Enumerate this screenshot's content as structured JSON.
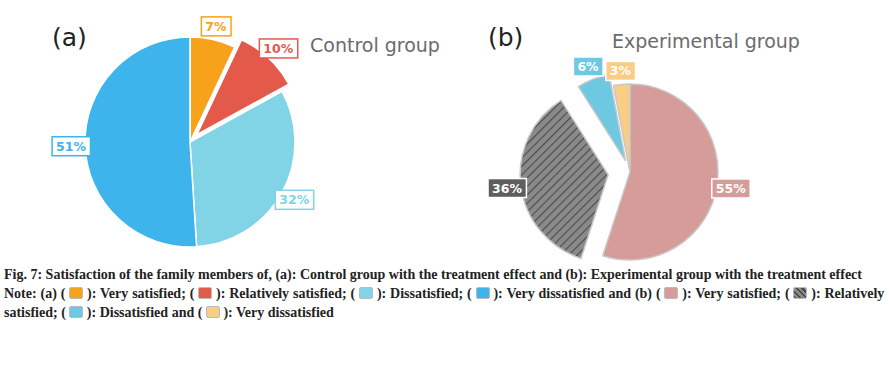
{
  "chart_data": [
    {
      "type": "pie",
      "panel": "(a)",
      "title": "Control group",
      "categories": [
        "Very satisfied",
        "Relatively satisfied",
        "Dissatisfied",
        "Very dissatisfied"
      ],
      "values": [
        7,
        10,
        32,
        51
      ],
      "value_labels": [
        "7%",
        "10%",
        "32%",
        "51%"
      ],
      "colors": [
        "#f7a21b",
        "#e35a4b",
        "#80d4e6",
        "#3db5ec"
      ],
      "data_labels": true
    },
    {
      "type": "pie",
      "panel": "(b)",
      "title": "Experimental group",
      "categories": [
        "Very satisfied",
        "Relatively satisfied",
        "Dissatisfied",
        "Very dissatisfied"
      ],
      "values": [
        55,
        36,
        6,
        3
      ],
      "value_labels": [
        "55%",
        "36%",
        "6%",
        "3%"
      ],
      "colors": [
        "#d69c99",
        "#8a8a8a",
        "#6ec8e2",
        "#f9cd85"
      ],
      "data_labels": true
    }
  ],
  "figure": {
    "caption": "Fig. 7: Satisfaction of the family members of, (a): Control group with the treatment effect and (b): Experimental group with the treatment effect",
    "note": {
      "lead": "Note:",
      "open": "(",
      "close": "):",
      "separators": [
        [
          ";",
          ";",
          ";",
          "and"
        ],
        [
          ";",
          ";",
          "and"
        ]
      ]
    }
  }
}
